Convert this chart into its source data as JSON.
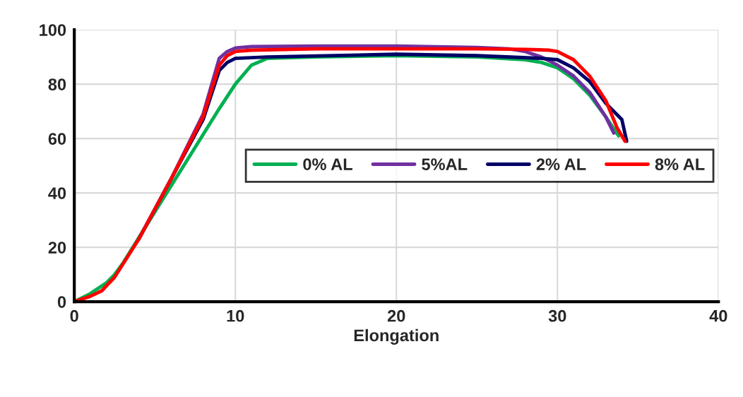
{
  "chart_data": {
    "type": "line",
    "xlabel": "Elongation",
    "xlim": [
      0,
      40
    ],
    "xticks": [
      0,
      10,
      20,
      30,
      40
    ],
    "ylim": [
      0,
      100
    ],
    "yticks": [
      0,
      20,
      40,
      60,
      80,
      100
    ],
    "grid": true,
    "legend": "right",
    "marker": "none",
    "line_style": "solid",
    "series": [
      {
        "name": "0% AL",
        "color": "#00b050",
        "x": [
          0,
          1,
          2,
          2.5,
          3,
          5,
          7,
          9,
          10,
          11,
          12,
          15,
          20,
          25,
          28,
          29,
          30,
          31,
          32,
          33,
          33.8
        ],
        "values": [
          0,
          3,
          7,
          10,
          14,
          33,
          52,
          71,
          80,
          87,
          89.5,
          90,
          90.5,
          90,
          89,
          88,
          86,
          82,
          76,
          68,
          61
        ]
      },
      {
        "name": "5%AL",
        "color": "#7030a0",
        "x": [
          4,
          6,
          8,
          9,
          9.5,
          10,
          11,
          15,
          20,
          25,
          27,
          28,
          29,
          30,
          31,
          32,
          33,
          33.5
        ],
        "values": [
          23,
          45,
          69,
          89.5,
          92,
          93.3,
          93.8,
          94,
          94,
          93.5,
          93,
          92,
          90,
          87,
          83,
          77,
          68,
          62
        ]
      },
      {
        "name": "2% AL",
        "color": "#000066",
        "x": [
          4,
          6,
          8,
          9,
          9.5,
          10,
          12,
          20,
          25,
          29,
          30,
          31,
          32,
          33,
          34,
          34.3
        ],
        "values": [
          23,
          45,
          67,
          85,
          88,
          89.5,
          90,
          91,
          90.5,
          89.5,
          89,
          86,
          81,
          73,
          67,
          59
        ]
      },
      {
        "name": "8% AL",
        "color": "#ff0000",
        "x": [
          0,
          1,
          1.7,
          2.5,
          4,
          6,
          8,
          9,
          9.5,
          10,
          11,
          15,
          20,
          25,
          28,
          29.5,
          30,
          31,
          32,
          33,
          33.7,
          34.2
        ],
        "values": [
          0,
          2,
          4,
          9,
          23,
          45,
          68,
          87,
          90.5,
          92,
          92.5,
          93,
          93,
          93,
          92.8,
          92.5,
          92,
          89,
          83,
          74,
          64,
          59
        ]
      }
    ]
  }
}
